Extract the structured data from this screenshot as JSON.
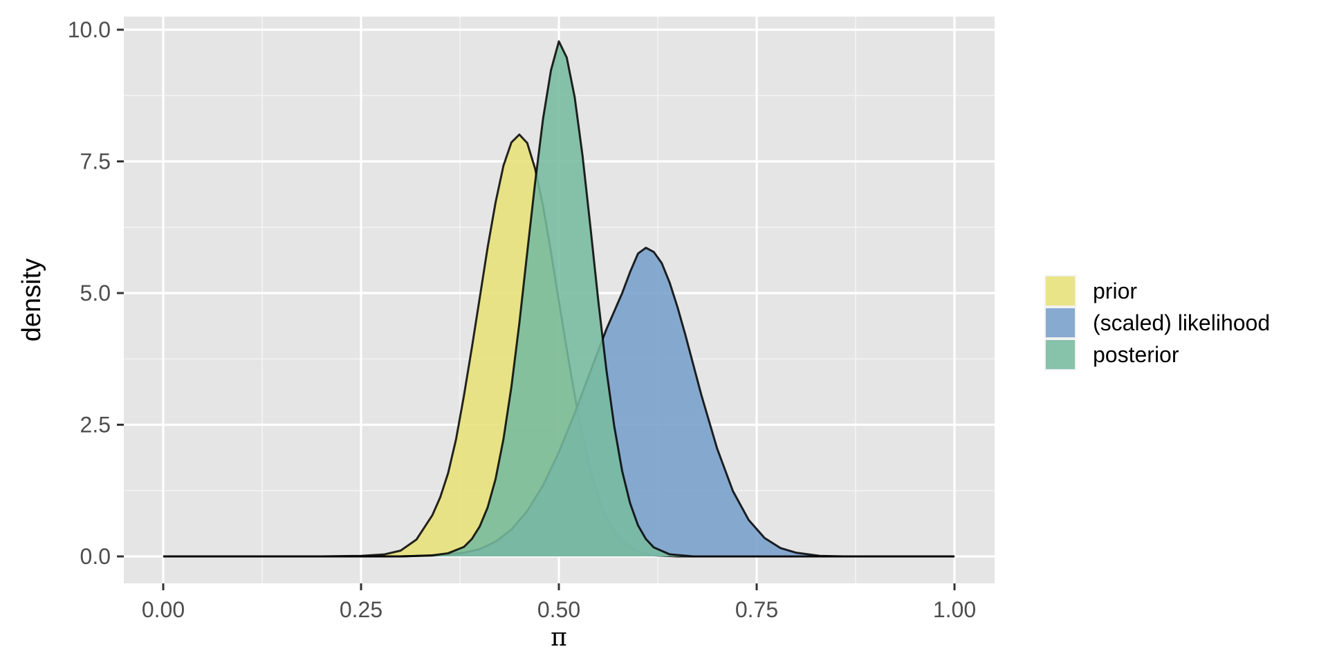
{
  "chart_data": {
    "type": "area",
    "xlabel": "π",
    "ylabel": "density",
    "xlim": [
      0,
      1
    ],
    "ylim": [
      0,
      10
    ],
    "x_ticks": [
      {
        "value": 0.0,
        "label": "0.00"
      },
      {
        "value": 0.25,
        "label": "0.25"
      },
      {
        "value": 0.5,
        "label": "0.50"
      },
      {
        "value": 0.75,
        "label": "0.75"
      },
      {
        "value": 1.0,
        "label": "1.00"
      }
    ],
    "y_ticks": [
      {
        "value": 0.0,
        "label": "0.0"
      },
      {
        "value": 2.5,
        "label": "2.5"
      },
      {
        "value": 5.0,
        "label": "5.0"
      },
      {
        "value": 7.5,
        "label": "7.5"
      },
      {
        "value": 10.0,
        "label": "10.0"
      }
    ],
    "x_minor": [
      0.125,
      0.375,
      0.625,
      0.875
    ],
    "y_minor": [
      1.25,
      3.75,
      6.25,
      8.75
    ],
    "grid": true,
    "legend": "right",
    "series": [
      {
        "name": "prior",
        "color": "#e7e179",
        "points": [
          [
            0.2,
            0.0
          ],
          [
            0.25,
            0.01
          ],
          [
            0.28,
            0.04
          ],
          [
            0.3,
            0.11
          ],
          [
            0.32,
            0.32
          ],
          [
            0.34,
            0.78
          ],
          [
            0.35,
            1.12
          ],
          [
            0.36,
            1.58
          ],
          [
            0.37,
            2.22
          ],
          [
            0.38,
            3.05
          ],
          [
            0.39,
            3.96
          ],
          [
            0.4,
            4.91
          ],
          [
            0.41,
            5.87
          ],
          [
            0.42,
            6.72
          ],
          [
            0.43,
            7.42
          ],
          [
            0.44,
            7.86
          ],
          [
            0.45,
            8.01
          ],
          [
            0.46,
            7.85
          ],
          [
            0.47,
            7.36
          ],
          [
            0.48,
            6.65
          ],
          [
            0.49,
            5.78
          ],
          [
            0.5,
            4.85
          ],
          [
            0.51,
            3.93
          ],
          [
            0.52,
            3.06
          ],
          [
            0.53,
            2.28
          ],
          [
            0.54,
            1.63
          ],
          [
            0.55,
            1.11
          ],
          [
            0.56,
            0.73
          ],
          [
            0.57,
            0.46
          ],
          [
            0.58,
            0.28
          ],
          [
            0.6,
            0.09
          ],
          [
            0.62,
            0.02
          ],
          [
            0.65,
            0.0
          ]
        ]
      },
      {
        "name": "(scaled) likelihood",
        "color": "#779fcb",
        "points": [
          [
            0.3,
            0.0
          ],
          [
            0.35,
            0.02
          ],
          [
            0.38,
            0.07
          ],
          [
            0.4,
            0.14
          ],
          [
            0.42,
            0.28
          ],
          [
            0.44,
            0.51
          ],
          [
            0.46,
            0.86
          ],
          [
            0.48,
            1.35
          ],
          [
            0.5,
            1.98
          ],
          [
            0.52,
            2.72
          ],
          [
            0.54,
            3.52
          ],
          [
            0.56,
            4.31
          ],
          [
            0.58,
            5.0
          ],
          [
            0.59,
            5.4
          ],
          [
            0.6,
            5.75
          ],
          [
            0.61,
            5.86
          ],
          [
            0.62,
            5.78
          ],
          [
            0.63,
            5.57
          ],
          [
            0.64,
            5.2
          ],
          [
            0.65,
            4.73
          ],
          [
            0.66,
            4.2
          ],
          [
            0.68,
            3.07
          ],
          [
            0.7,
            2.05
          ],
          [
            0.72,
            1.24
          ],
          [
            0.74,
            0.69
          ],
          [
            0.76,
            0.35
          ],
          [
            0.78,
            0.16
          ],
          [
            0.8,
            0.07
          ],
          [
            0.83,
            0.01
          ],
          [
            0.86,
            0.0
          ]
        ]
      },
      {
        "name": "posterior",
        "color": "#78bb9f",
        "points": [
          [
            0.3,
            0.0
          ],
          [
            0.34,
            0.02
          ],
          [
            0.36,
            0.06
          ],
          [
            0.38,
            0.18
          ],
          [
            0.39,
            0.33
          ],
          [
            0.4,
            0.57
          ],
          [
            0.41,
            0.93
          ],
          [
            0.42,
            1.47
          ],
          [
            0.43,
            2.23
          ],
          [
            0.44,
            3.22
          ],
          [
            0.45,
            4.42
          ],
          [
            0.46,
            5.77
          ],
          [
            0.47,
            7.1
          ],
          [
            0.48,
            8.31
          ],
          [
            0.49,
            9.23
          ],
          [
            0.5,
            9.78
          ],
          [
            0.51,
            9.47
          ],
          [
            0.52,
            8.72
          ],
          [
            0.53,
            7.6
          ],
          [
            0.54,
            6.24
          ],
          [
            0.55,
            4.83
          ],
          [
            0.56,
            3.55
          ],
          [
            0.57,
            2.47
          ],
          [
            0.58,
            1.62
          ],
          [
            0.59,
            1.01
          ],
          [
            0.6,
            0.59
          ],
          [
            0.61,
            0.33
          ],
          [
            0.62,
            0.17
          ],
          [
            0.64,
            0.04
          ],
          [
            0.67,
            0.0
          ]
        ]
      }
    ]
  }
}
